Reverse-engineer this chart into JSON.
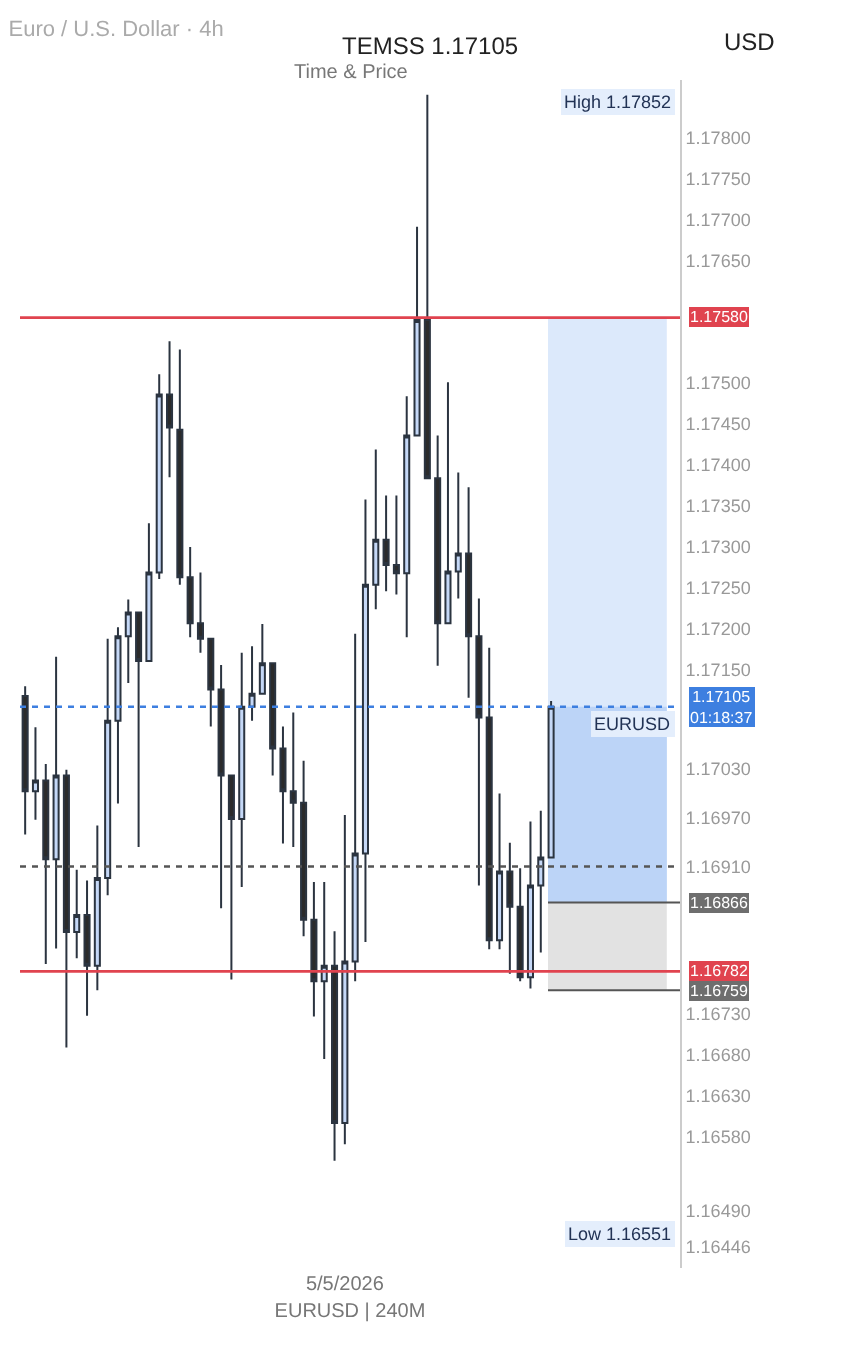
{
  "chart_data": {
    "type": "candlestick",
    "title": "Euro / U.S. Dollar · 4h",
    "subtitle": "Time & Price",
    "xlabel": "EURUSD | 240M",
    "ylabel": "USD",
    "categories": [
      null,
      null,
      null,
      null,
      null,
      null,
      null,
      null,
      null,
      null,
      null,
      null,
      null,
      null,
      null,
      null,
      null,
      null,
      null,
      null,
      null,
      null,
      null,
      null,
      null,
      null,
      null,
      null,
      null,
      null,
      null,
      "5/5/2026",
      null,
      null,
      null,
      null,
      null,
      null,
      null,
      null,
      null,
      null,
      null,
      null,
      null,
      null,
      null,
      null,
      null,
      null,
      null,
      null,
      null,
      null,
      null,
      null,
      null,
      null,
      null,
      null,
      null,
      null,
      null,
      null
    ],
    "colors": [
      "#2b2b2b",
      "#c5d8f7",
      "#2b2b2b",
      "#c5d8f7",
      "#2b2b2b",
      "#c5d8f7",
      "#2b2b2b",
      "#c5d8f7",
      "#c5d8f7",
      "#c5d8f7",
      "#c5d8f7",
      "#2b2b2b",
      "#c5d8f7",
      "#c5d8f7",
      "#2b2b2b",
      "#2b2b2b",
      "#2b2b2b",
      "#2b2b2b",
      "#2b2b2b",
      "#2b2b2b",
      "#2b2b2b",
      "#c5d8f7",
      "#c5d8f7",
      "#c5d8f7",
      "#2b2b2b",
      "#2b2b2b",
      "#2b2b2b",
      "#2b2b2b",
      "#2b2b2b",
      "#c5d8f7",
      "#2b2b2b",
      "#c5d8f7",
      "#c5d8f7",
      "#c5d8f7",
      "#c5d8f7",
      "#2b2b2b",
      "#2b2b2b",
      "#c5d8f7",
      "#c5d8f7",
      "#2b2b2b",
      "#2b2b2b",
      "#c5d8f7",
      "#c5d8f7",
      "#2b2b2b",
      "#2b2b2b",
      "#2b2b2b",
      "#c5d8f7",
      "#2b2b2b",
      "#2b2b2b",
      "#c5d8f7",
      "#c5d8f7",
      "#c5d8f7",
      null,
      null,
      null,
      null,
      null,
      null,
      null,
      null,
      null,
      null,
      null,
      null
    ],
    "ohlc": [
      [
        1.17118,
        1.1713,
        1.16949,
        1.17002
      ],
      [
        1.17002,
        1.1708,
        1.16967,
        1.17015
      ],
      [
        1.17015,
        1.17035,
        1.16791,
        1.16919
      ],
      [
        1.16919,
        1.17166,
        1.1681,
        1.17021
      ],
      [
        1.17021,
        1.17028,
        1.16689,
        1.1683
      ],
      [
        1.1683,
        1.16906,
        1.16798,
        1.16851
      ],
      [
        1.16851,
        1.16893,
        1.16728,
        1.16789
      ],
      [
        1.16789,
        1.1696,
        1.16759,
        1.16896
      ],
      [
        1.16896,
        1.17188,
        1.16875,
        1.17088
      ],
      [
        1.17088,
        1.17202,
        1.16987,
        1.17191
      ],
      [
        1.17191,
        1.17236,
        1.17134,
        1.1722
      ],
      [
        1.1722,
        1.1722,
        1.16934,
        1.17161
      ],
      [
        1.17161,
        1.17329,
        1.17161,
        1.17269
      ],
      [
        1.17269,
        1.17511,
        1.17261,
        1.17486
      ],
      [
        1.17486,
        1.17551,
        1.17385,
        1.17446
      ],
      [
        1.17443,
        1.17541,
        1.17254,
        1.17263
      ],
      [
        1.17263,
        1.173,
        1.1719,
        1.17207
      ],
      [
        1.17207,
        1.17269,
        1.17171,
        1.17188
      ],
      [
        1.17188,
        1.17188,
        1.17081,
        1.17126
      ],
      [
        1.17126,
        1.17156,
        1.16859,
        1.17021
      ],
      [
        1.17021,
        1.17021,
        1.16772,
        1.16968
      ],
      [
        1.16968,
        1.17171,
        1.16885,
        1.17105
      ],
      [
        1.17105,
        1.17179,
        1.17088,
        1.17121
      ],
      [
        1.17121,
        1.17206,
        1.17121,
        1.17158
      ],
      [
        1.17158,
        1.17158,
        1.17021,
        1.17054
      ],
      [
        1.17054,
        1.17081,
        1.16938,
        1.17002
      ],
      [
        1.17002,
        1.17098,
        1.16934,
        1.16988
      ],
      [
        1.16988,
        1.17039,
        1.16825,
        1.16845
      ],
      [
        1.16845,
        1.16891,
        1.16727,
        1.1677
      ],
      [
        1.1677,
        1.16891,
        1.16675,
        1.16789
      ],
      [
        1.16789,
        1.16831,
        1.16551,
        1.16597
      ],
      [
        1.16597,
        1.16973,
        1.16571,
        1.16794
      ],
      [
        1.16794,
        1.17194,
        1.1677,
        1.16926
      ],
      [
        1.16926,
        1.17358,
        1.16818,
        1.17254
      ],
      [
        1.17254,
        1.17419,
        1.17224,
        1.17309
      ],
      [
        1.17309,
        1.17363,
        1.17246,
        1.17278
      ],
      [
        1.17278,
        1.17363,
        1.17242,
        1.17268
      ],
      [
        1.17268,
        1.17484,
        1.1719,
        1.17436
      ],
      [
        1.17436,
        1.17691,
        1.17436,
        1.17577
      ],
      [
        1.17577,
        1.17852,
        1.17384,
        1.17384
      ],
      [
        1.17384,
        1.17436,
        1.17155,
        1.17207
      ],
      [
        1.17207,
        1.17501,
        1.17207,
        1.1727
      ],
      [
        1.1727,
        1.17391,
        1.17237,
        1.17292
      ],
      [
        1.17292,
        1.17373,
        1.17116,
        1.17191
      ],
      [
        1.17191,
        1.17237,
        1.16887,
        1.17092
      ],
      [
        1.17092,
        1.17177,
        1.16809,
        1.1682
      ],
      [
        1.1682,
        1.16999,
        1.16809,
        1.16904
      ],
      [
        1.16904,
        1.16939,
        1.16779,
        1.16861
      ],
      [
        1.16861,
        1.16908,
        1.1677,
        1.16775
      ],
      [
        1.16775,
        1.16965,
        1.16761,
        1.16887
      ],
      [
        1.16887,
        1.16978,
        1.16805,
        1.16921
      ],
      [
        1.16921,
        1.17112,
        1.16921,
        1.17105
      ],
      null,
      null,
      null,
      null,
      null,
      null,
      null,
      null,
      null,
      null,
      null,
      null
    ],
    "ylim": [
      1.1642,
      1.1787
    ],
    "yticks": [
      {
        "value": 1.178,
        "label": "1.17800"
      },
      {
        "value": 1.1775,
        "label": "1.17750"
      },
      {
        "value": 1.177,
        "label": "1.17700"
      },
      {
        "value": 1.1765,
        "label": "1.17650"
      },
      {
        "value": 1.175,
        "label": "1.17500"
      },
      {
        "value": 1.1745,
        "label": "1.17450"
      },
      {
        "value": 1.174,
        "label": "1.17400"
      },
      {
        "value": 1.1735,
        "label": "1.17350"
      },
      {
        "value": 1.173,
        "label": "1.17300"
      },
      {
        "value": 1.1725,
        "label": "1.17250"
      },
      {
        "value": 1.172,
        "label": "1.17200"
      },
      {
        "value": 1.1715,
        "label": "1.17150"
      },
      {
        "value": 1.1703,
        "label": "1.17030"
      },
      {
        "value": 1.1697,
        "label": "1.16970"
      },
      {
        "value": 1.1691,
        "label": "1.16910"
      },
      {
        "value": 1.1673,
        "label": "1.16730"
      },
      {
        "value": 1.1668,
        "label": "1.16680"
      },
      {
        "value": 1.1663,
        "label": "1.16630"
      },
      {
        "value": 1.1658,
        "label": "1.16580"
      },
      {
        "value": 1.1649,
        "label": "1.16490"
      },
      1.16446
    ],
    "ref_lines": [
      {
        "axis": "y",
        "value": 1.1758,
        "label": "1.17580",
        "color": "#e0434f",
        "line_style": "solid"
      },
      {
        "axis": "y",
        "value": 1.16782,
        "label": "1.16782",
        "color": "#e0434f",
        "line_style": "solid"
      },
      {
        "axis": "y",
        "value": 1.17105,
        "label": "1.17105\n01:18:37",
        "color": "#3d7fe0",
        "line_style": "dotted"
      },
      {
        "axis": "y",
        "value": 1.1691,
        "label": null,
        "color": "#555555",
        "line_style": "dotted"
      }
    ],
    "bands": [
      {
        "axis": "y",
        "from": 1.16866,
        "to": 1.1758,
        "label": "1.16866",
        "color": "#dce9fb"
      },
      {
        "axis": "y",
        "from": 1.16866,
        "to": 1.17105,
        "label": null,
        "color": "#bcd4f7"
      },
      {
        "axis": "y",
        "from": 1.16759,
        "to": 1.16866,
        "label": "1.16759",
        "color": "#e2e2e2"
      }
    ],
    "annotations": [
      "TEMSS 1.17105",
      {
        "text": "EURUSD",
        "y": 1.17105
      },
      "High 1.17852",
      "Low 1.16551"
    ],
    "grid": false,
    "legend": false
  }
}
